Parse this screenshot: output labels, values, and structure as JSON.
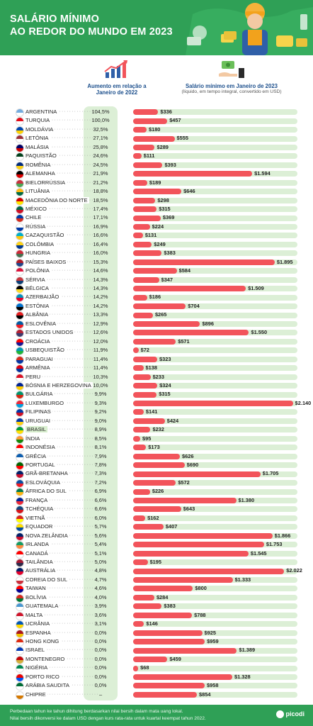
{
  "header": {
    "title_line1": "SALÁRIO MÍNIMO",
    "title_line2": "AO REDOR DO MUNDO EM 2023"
  },
  "columns": {
    "change": {
      "title": "Aumento em relação a Janeiro de 2022",
      "icon": "growth-chart-icon"
    },
    "wage": {
      "title": "Salário mínimo em Janeiro de 2023",
      "subtitle": "(líquido, em tempo integral, convertido em USD)",
      "icon": "money-hand-icon"
    }
  },
  "colors": {
    "header": "#2fa056",
    "bar": "#f2545b",
    "track": "#dcefd6",
    "pct_column": "#dcefd6",
    "highlight": "#d9efcf"
  },
  "footer": {
    "line1": "Perbedaan tahun ke tahun dihitung berdasarkan nilai bersih dalam mata uang lokal.",
    "line2": "Nilai bersih dikonversi ke dalam USD dengan kurs rata-rata untuk kuartal keempat tahun 2022.",
    "brand": "picodi"
  },
  "chart_data": {
    "type": "bar",
    "orientation": "horizontal",
    "title": "SALÁRIO MÍNIMO AO REDOR DO MUNDO EM 2023",
    "xlim": [
      0,
      2200
    ],
    "highlight": "BRASIL",
    "rows": [
      {
        "country": "ARGENTINA",
        "change": "104,5%",
        "value": 336,
        "label": "$336"
      },
      {
        "country": "TURQUIA",
        "change": "100,0%",
        "value": 457,
        "label": "$457"
      },
      {
        "country": "MOLDÁVIA",
        "change": "32,5%",
        "value": 180,
        "label": "$180"
      },
      {
        "country": "LETÔNIA",
        "change": "27,1%",
        "value": 555,
        "label": "$555"
      },
      {
        "country": "MALÁSIA",
        "change": "25,8%",
        "value": 289,
        "label": "$289"
      },
      {
        "country": "PAQUISTÃO",
        "change": "24,6%",
        "value": 111,
        "label": "$111"
      },
      {
        "country": "ROMÊNIA",
        "change": "24,5%",
        "value": 393,
        "label": "$393"
      },
      {
        "country": "ALEMANHA",
        "change": "21,9%",
        "value": 1594,
        "label": "$1.594"
      },
      {
        "country": "BIELORRÚSSIA",
        "change": "21,2%",
        "value": 189,
        "label": "$189"
      },
      {
        "country": "LITUÂNIA",
        "change": "18,8%",
        "value": 646,
        "label": "$646"
      },
      {
        "country": "MACEDÔNIA DO NORTE",
        "change": "18,5%",
        "value": 298,
        "label": "$298"
      },
      {
        "country": "MÉXICO",
        "change": "17,4%",
        "value": 315,
        "label": "$315"
      },
      {
        "country": "CHILE",
        "change": "17,1%",
        "value": 369,
        "label": "$369"
      },
      {
        "country": "RÚSSIA",
        "change": "16,9%",
        "value": 224,
        "label": "$224"
      },
      {
        "country": "CAZAQUISTÃO",
        "change": "16,6%",
        "value": 131,
        "label": "$131"
      },
      {
        "country": "COLÔMBIA",
        "change": "16,4%",
        "value": 249,
        "label": "$249"
      },
      {
        "country": "HUNGRIA",
        "change": "16,0%",
        "value": 383,
        "label": "$383"
      },
      {
        "country": "PAÍSES BAIXOS",
        "change": "15,3%",
        "value": 1895,
        "label": "$1.895"
      },
      {
        "country": "POLÔNIA",
        "change": "14,6%",
        "value": 584,
        "label": "$584"
      },
      {
        "country": "SÉRVIA",
        "change": "14,3%",
        "value": 347,
        "label": "$347"
      },
      {
        "country": "BÉLGICA",
        "change": "14,3%",
        "value": 1509,
        "label": "$1.509"
      },
      {
        "country": "AZERBAIJÃO",
        "change": "14,2%",
        "value": 186,
        "label": "$186"
      },
      {
        "country": "ESTÔNIA",
        "change": "14,2%",
        "value": 704,
        "label": "$704"
      },
      {
        "country": "ALBÂNIA",
        "change": "13,3%",
        "value": 265,
        "label": "$265"
      },
      {
        "country": "ESLOVÊNIA",
        "change": "12,9%",
        "value": 896,
        "label": "$896"
      },
      {
        "country": "ESTADOS UNIDOS",
        "change": "12,6%",
        "value": 1550,
        "label": "$1.550"
      },
      {
        "country": "CROÁCIA",
        "change": "12,0%",
        "value": 571,
        "label": "$571"
      },
      {
        "country": "USBEQUISTÃO",
        "change": "11,9%",
        "value": 72,
        "label": "$72"
      },
      {
        "country": "PARAGUAI",
        "change": "11,4%",
        "value": 323,
        "label": "$323"
      },
      {
        "country": "ARMÊNIA",
        "change": "11,4%",
        "value": 138,
        "label": "$138"
      },
      {
        "country": "PERU",
        "change": "10,3%",
        "value": 233,
        "label": "$233"
      },
      {
        "country": "BÓSNIA E HERZEGOVINA",
        "change": "10,0%",
        "value": 324,
        "label": "$324"
      },
      {
        "country": "BULGÁRIA",
        "change": "9,9%",
        "value": 315,
        "label": "$315"
      },
      {
        "country": "LUXEMBURGO",
        "change": "9,3%",
        "value": 2140,
        "label": "$2.140"
      },
      {
        "country": "FILIPINAS",
        "change": "9,2%",
        "value": 141,
        "label": "$141"
      },
      {
        "country": "URUGUAI",
        "change": "9,0%",
        "value": 424,
        "label": "$424"
      },
      {
        "country": "BRASIL",
        "change": "8,9%",
        "value": 232,
        "label": "$232"
      },
      {
        "country": "ÍNDIA",
        "change": "8,5%",
        "value": 95,
        "label": "$95"
      },
      {
        "country": "INDONÉSIA",
        "change": "8,1%",
        "value": 173,
        "label": "$173"
      },
      {
        "country": "GRÉCIA",
        "change": "7,9%",
        "value": 626,
        "label": "$626"
      },
      {
        "country": "PORTUGAL",
        "change": "7,8%",
        "value": 690,
        "label": "$690"
      },
      {
        "country": "GRÃ-BRETANHA",
        "change": "7,3%",
        "value": 1705,
        "label": "$1.705"
      },
      {
        "country": "ESLOVÁQUIA",
        "change": "7,2%",
        "value": 572,
        "label": "$572"
      },
      {
        "country": "ÁFRICA DO SUL",
        "change": "6,9%",
        "value": 226,
        "label": "$226"
      },
      {
        "country": "FRANÇA",
        "change": "6,6%",
        "value": 1380,
        "label": "$1.380"
      },
      {
        "country": "TCHÉQUIA",
        "change": "6,6%",
        "value": 643,
        "label": "$643"
      },
      {
        "country": "VIETNÃ",
        "change": "6,0%",
        "value": 162,
        "label": "$162"
      },
      {
        "country": "EQUADOR",
        "change": "5,7%",
        "value": 407,
        "label": "$407"
      },
      {
        "country": "NOVA ZELÂNDIA",
        "change": "5,6%",
        "value": 1866,
        "label": "$1.866"
      },
      {
        "country": "IRLANDA",
        "change": "5,4%",
        "value": 1753,
        "label": "$1.753"
      },
      {
        "country": "CANADÁ",
        "change": "5,1%",
        "value": 1545,
        "label": "$1.545"
      },
      {
        "country": "TAILÂNDIA",
        "change": "5,0%",
        "value": 195,
        "label": "$195"
      },
      {
        "country": "AUSTRÁLIA",
        "change": "4,8%",
        "value": 2022,
        "label": "$2.022"
      },
      {
        "country": "COREIA DO SUL",
        "change": "4,7%",
        "value": 1333,
        "label": "$1.333"
      },
      {
        "country": "TAIWAN",
        "change": "4,6%",
        "value": 800,
        "label": "$800"
      },
      {
        "country": "BOLÍVIA",
        "change": "4,0%",
        "value": 284,
        "label": "$284"
      },
      {
        "country": "GUATEMALA",
        "change": "3,9%",
        "value": 383,
        "label": "$383"
      },
      {
        "country": "MALTA",
        "change": "3,6%",
        "value": 788,
        "label": "$788"
      },
      {
        "country": "UCRÂNIA",
        "change": "3,1%",
        "value": 146,
        "label": "$146"
      },
      {
        "country": "ESPANHA",
        "change": "0,0%",
        "value": 925,
        "label": "$925"
      },
      {
        "country": "HONG KONG",
        "change": "0,0%",
        "value": 959,
        "label": "$959"
      },
      {
        "country": "ISRAEL",
        "change": "0,0%",
        "value": 1389,
        "label": "$1.389"
      },
      {
        "country": "MONTENEGRO",
        "change": "0,0%",
        "value": 459,
        "label": "$459"
      },
      {
        "country": "NIGÉRIA",
        "change": "0,0%",
        "value": 68,
        "label": "$68"
      },
      {
        "country": "PORTO RICO",
        "change": "0,0%",
        "value": 1328,
        "label": "$1.328"
      },
      {
        "country": "ARÁBIA SAUDITA",
        "change": "0,0%",
        "value": 958,
        "label": "$958"
      },
      {
        "country": "CHIPRE",
        "change": "–",
        "value": 854,
        "label": "$854"
      }
    ]
  }
}
